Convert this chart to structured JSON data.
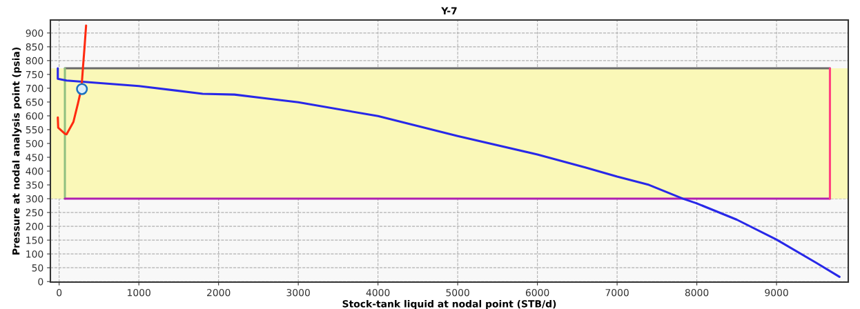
{
  "chart_data": {
    "type": "line",
    "title": "Y-7",
    "xlabel": "Stock-tank liquid at nodal point (STB/d)",
    "ylabel": "Pressure at nodal analysis point (psia)",
    "xlim": [
      -110,
      9900
    ],
    "ylim": [
      -2,
      947
    ],
    "xticks": [
      0,
      1000,
      2000,
      3000,
      4000,
      5000,
      6000,
      7000,
      8000,
      9000
    ],
    "yticks": [
      0,
      50,
      100,
      150,
      200,
      250,
      300,
      350,
      400,
      450,
      500,
      550,
      600,
      650,
      700,
      750,
      800,
      850,
      900
    ],
    "grid": true,
    "marker": "none",
    "line_style": "solid",
    "bands": [
      {
        "axis": "y",
        "from": 300,
        "to": 772,
        "color": "#faf8b8"
      }
    ],
    "series": [
      {
        "color": "#6a6a6a",
        "x": [
          72,
          9670
        ],
        "values": [
          772,
          772
        ]
      },
      {
        "color": "#90c080",
        "x": [
          72,
          72
        ],
        "values": [
          300,
          772
        ]
      },
      {
        "color": "#b020b0",
        "x": [
          72,
          9670
        ],
        "values": [
          300,
          300
        ]
      },
      {
        "color": "#ff4080",
        "x": [
          9670,
          9670
        ],
        "values": [
          300,
          772
        ]
      },
      {
        "color": "#2828e8",
        "x": [
          -17,
          -17,
          93,
          1000,
          1800,
          2200,
          2600,
          3000,
          4000,
          5000,
          6000,
          6600,
          7000,
          7400,
          7827,
          8000,
          8502,
          9000,
          9498,
          9790
        ],
        "values": [
          772,
          734,
          728,
          708,
          680,
          677,
          663,
          649,
          599,
          527,
          460,
          413,
          380,
          350,
          300,
          283,
          224,
          152,
          68,
          17
        ]
      },
      {
        "color": "#ff2a10",
        "x": [
          -17,
          -12,
          72,
          93,
          179,
          236,
          280,
          300,
          318,
          338
        ],
        "values": [
          594,
          557,
          535,
          533,
          578,
          645,
          700,
          780,
          847,
          927
        ]
      },
      {
        "type": "scatter",
        "marker": "circle",
        "color": "#1a70c0",
        "x": [
          286
        ],
        "values": [
          697
        ]
      }
    ]
  }
}
